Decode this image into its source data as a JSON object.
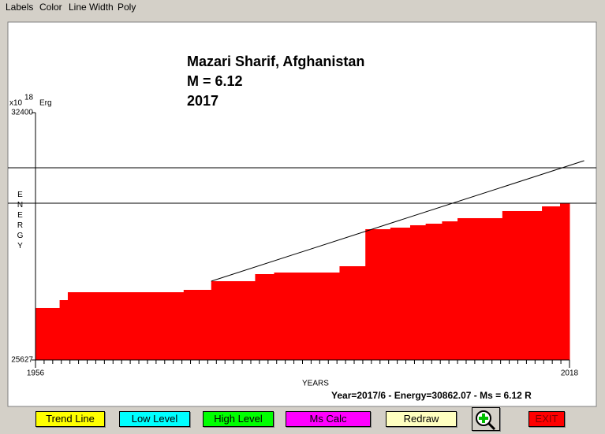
{
  "menu": [
    "Labels",
    "Color",
    "Line Width",
    "Poly"
  ],
  "chart_data": {
    "type": "step-area",
    "title": [
      "Mazari Sharif, Afghanistan",
      "M = 6.12",
      "2017"
    ],
    "y_unit": {
      "prefix": "x10",
      "exponent": "18",
      "unit": "Erg"
    },
    "ylabel": "ENERGY",
    "xlabel": "YEARS",
    "x": [
      1956,
      1958.8,
      1959.75,
      1973.2,
      1976.4,
      1981.5,
      1983.7,
      1991.3,
      1994.3,
      1997.2,
      1999.5,
      2001.3,
      2003.2,
      2005,
      2010.2,
      2014.8,
      2016.9
    ],
    "values": [
      27051,
      27266,
      27482,
      27547,
      27784,
      27978,
      28021,
      28194,
      29208,
      29251,
      29316,
      29359,
      29423,
      29510,
      29704,
      29833,
      29920
    ],
    "color": "#ff0000",
    "trend_line": {
      "x": [
        1976.4,
        2019.7
      ],
      "values": [
        27784,
        31084
      ]
    },
    "level_lines": [
      30890,
      29920
    ],
    "xlim": [
      1956,
      2018
    ],
    "ylim": [
      25627,
      32400
    ],
    "xticks": [
      1956,
      2018
    ],
    "yticks": [
      25627,
      32400
    ],
    "xminor_step": 1
  },
  "status": "Year=2017/6 - Energy=30862.07 - Ms = 6.12 R",
  "buttons": [
    "Trend Line",
    "Low Level",
    "High Level",
    "Ms Calc",
    "Redraw",
    "EXIT"
  ]
}
